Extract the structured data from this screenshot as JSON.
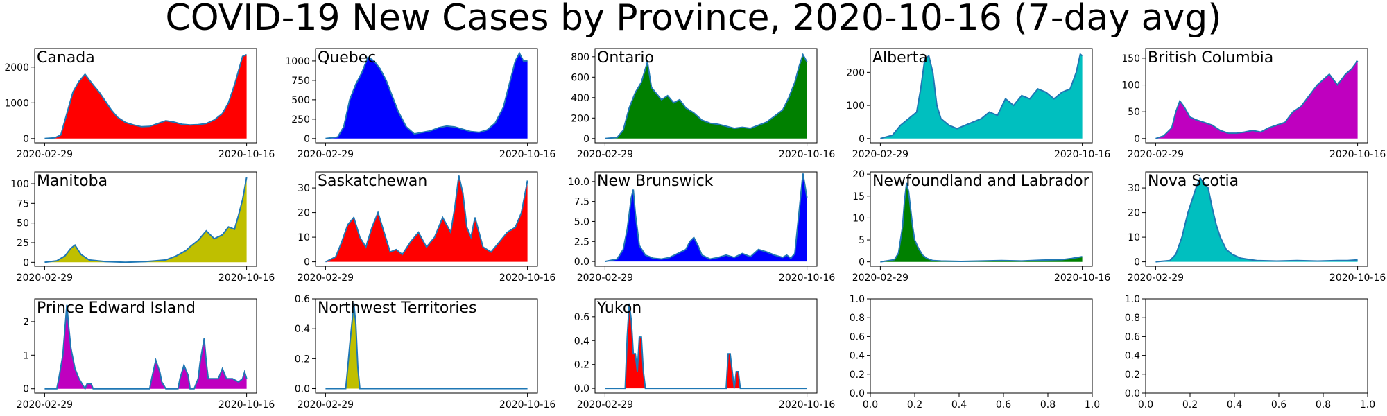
{
  "figure": {
    "title": "COVID-19 New Cases by Province, 2020-10-16 (7-day avg)"
  },
  "chart_data": [
    {
      "type": "area",
      "title": "Canada",
      "color": "#ff0000",
      "line_color": "#1f77b4",
      "x_start": "2020-02-29",
      "x_end": "2020-10-16",
      "x_ticks": [
        "2020-02-29",
        "2020-10-16"
      ],
      "ylim": [
        -120,
        2520
      ],
      "y_ticks": [
        0,
        1000,
        2000
      ],
      "y_tick_labels": [
        "0",
        "1000",
        "2000"
      ],
      "x_frac": [
        0,
        0.05,
        0.08,
        0.11,
        0.14,
        0.17,
        0.2,
        0.22,
        0.24,
        0.27,
        0.3,
        0.33,
        0.36,
        0.4,
        0.44,
        0.48,
        0.52,
        0.56,
        0.6,
        0.64,
        0.68,
        0.72,
        0.76,
        0.8,
        0.84,
        0.88,
        0.91,
        0.94,
        0.96,
        0.98,
        1.0
      ],
      "values": [
        0,
        20,
        100,
        700,
        1300,
        1600,
        1800,
        1650,
        1500,
        1300,
        1050,
        800,
        600,
        450,
        380,
        330,
        340,
        420,
        500,
        460,
        400,
        380,
        390,
        420,
        520,
        700,
        1000,
        1500,
        1900,
        2300,
        2350
      ]
    },
    {
      "type": "area",
      "title": "Quebec",
      "color": "#0000ff",
      "line_color": "#1f77b4",
      "x_start": "2020-02-29",
      "x_end": "2020-10-16",
      "x_ticks": [
        "2020-02-29",
        "2020-10-16"
      ],
      "ylim": [
        -55,
        1160
      ],
      "y_ticks": [
        0,
        250,
        500,
        750,
        1000
      ],
      "y_tick_labels": [
        "0",
        "250",
        "500",
        "750",
        "1000"
      ],
      "x_frac": [
        0,
        0.06,
        0.09,
        0.12,
        0.15,
        0.18,
        0.21,
        0.24,
        0.27,
        0.3,
        0.33,
        0.36,
        0.4,
        0.44,
        0.48,
        0.52,
        0.56,
        0.6,
        0.64,
        0.68,
        0.72,
        0.76,
        0.8,
        0.84,
        0.88,
        0.91,
        0.94,
        0.96,
        0.98,
        1.0
      ],
      "values": [
        0,
        20,
        150,
        500,
        700,
        850,
        1050,
        1000,
        900,
        750,
        550,
        350,
        150,
        60,
        80,
        100,
        140,
        160,
        150,
        120,
        90,
        80,
        110,
        200,
        400,
        700,
        1000,
        1100,
        1000,
        1000
      ]
    },
    {
      "type": "area",
      "title": "Ontario",
      "color": "#008000",
      "line_color": "#1f77b4",
      "x_start": "2020-02-29",
      "x_end": "2020-10-16",
      "x_ticks": [
        "2020-02-29",
        "2020-10-16"
      ],
      "ylim": [
        -42,
        880
      ],
      "y_ticks": [
        0,
        200,
        400,
        600,
        800
      ],
      "y_tick_labels": [
        "0",
        "200",
        "400",
        "600",
        "800"
      ],
      "x_frac": [
        0,
        0.06,
        0.09,
        0.12,
        0.15,
        0.18,
        0.21,
        0.23,
        0.25,
        0.28,
        0.31,
        0.34,
        0.37,
        0.4,
        0.44,
        0.48,
        0.52,
        0.56,
        0.6,
        0.64,
        0.68,
        0.72,
        0.76,
        0.8,
        0.84,
        0.88,
        0.91,
        0.94,
        0.96,
        0.98,
        1.0
      ],
      "values": [
        0,
        10,
        80,
        300,
        450,
        550,
        750,
        500,
        450,
        380,
        420,
        350,
        380,
        300,
        250,
        180,
        150,
        140,
        120,
        100,
        110,
        100,
        130,
        160,
        220,
        280,
        400,
        550,
        700,
        820,
        750
      ]
    },
    {
      "type": "area",
      "title": "Alberta",
      "color": "#00bfbf",
      "line_color": "#1f77b4",
      "x_start": "2020-02-29",
      "x_end": "2020-10-16",
      "x_ticks": [
        "2020-02-29",
        "2020-10-16"
      ],
      "ylim": [
        -13,
        272
      ],
      "y_ticks": [
        0,
        100,
        200
      ],
      "y_tick_labels": [
        "0",
        "100",
        "200"
      ],
      "x_frac": [
        0,
        0.06,
        0.1,
        0.14,
        0.18,
        0.2,
        0.22,
        0.24,
        0.26,
        0.28,
        0.3,
        0.34,
        0.38,
        0.42,
        0.46,
        0.5,
        0.54,
        0.58,
        0.62,
        0.66,
        0.7,
        0.74,
        0.78,
        0.82,
        0.86,
        0.9,
        0.94,
        0.97,
        0.99,
        1.0
      ],
      "values": [
        0,
        10,
        40,
        60,
        80,
        150,
        240,
        250,
        200,
        100,
        60,
        40,
        30,
        40,
        50,
        60,
        80,
        70,
        120,
        100,
        130,
        120,
        150,
        140,
        120,
        140,
        150,
        200,
        255,
        250
      ]
    },
    {
      "type": "area",
      "title": "British Columbia",
      "color": "#bf00bf",
      "line_color": "#1f77b4",
      "x_start": "2020-02-29",
      "x_end": "2020-10-16",
      "x_ticks": [
        "2020-02-29",
        "2020-10-16"
      ],
      "ylim": [
        -8,
        168
      ],
      "y_ticks": [
        0,
        50,
        100,
        150
      ],
      "y_tick_labels": [
        "0",
        "50",
        "100",
        "150"
      ],
      "x_frac": [
        0,
        0.04,
        0.08,
        0.1,
        0.12,
        0.14,
        0.17,
        0.2,
        0.24,
        0.28,
        0.32,
        0.36,
        0.4,
        0.44,
        0.48,
        0.52,
        0.56,
        0.6,
        0.64,
        0.68,
        0.72,
        0.74,
        0.76,
        0.78,
        0.8,
        0.83,
        0.86,
        0.9,
        0.94,
        0.97,
        1.0
      ],
      "values": [
        0,
        5,
        20,
        50,
        70,
        60,
        40,
        35,
        30,
        25,
        15,
        10,
        10,
        12,
        15,
        12,
        20,
        25,
        30,
        50,
        60,
        70,
        80,
        90,
        100,
        110,
        120,
        100,
        120,
        130,
        145
      ]
    },
    {
      "type": "area",
      "title": "Manitoba",
      "color": "#bfbf00",
      "line_color": "#1f77b4",
      "x_start": "2020-02-29",
      "x_end": "2020-10-16",
      "x_ticks": [
        "2020-02-29",
        "2020-10-16"
      ],
      "ylim": [
        -5,
        115
      ],
      "y_ticks": [
        0,
        25,
        50,
        75,
        100
      ],
      "y_tick_labels": [
        "0",
        "25",
        "50",
        "75",
        "100"
      ],
      "x_frac": [
        0,
        0.06,
        0.1,
        0.13,
        0.15,
        0.18,
        0.22,
        0.3,
        0.4,
        0.5,
        0.55,
        0.6,
        0.65,
        0.7,
        0.72,
        0.76,
        0.8,
        0.84,
        0.88,
        0.91,
        0.94,
        0.96,
        0.98,
        1.0
      ],
      "values": [
        0,
        2,
        8,
        18,
        22,
        10,
        3,
        1,
        0,
        1,
        2,
        3,
        8,
        15,
        20,
        28,
        40,
        30,
        35,
        45,
        42,
        60,
        80,
        108
      ]
    },
    {
      "type": "area",
      "title": "Saskatchewan",
      "color": "#ff0000",
      "line_color": "#1f77b4",
      "x_start": "2020-02-29",
      "x_end": "2020-10-16",
      "x_ticks": [
        "2020-02-29",
        "2020-10-16"
      ],
      "ylim": [
        -1.8,
        36.5
      ],
      "y_ticks": [
        0,
        10,
        20,
        30
      ],
      "y_tick_labels": [
        "0",
        "10",
        "20",
        "30"
      ],
      "x_frac": [
        0,
        0.05,
        0.08,
        0.11,
        0.14,
        0.17,
        0.2,
        0.23,
        0.26,
        0.29,
        0.32,
        0.35,
        0.38,
        0.42,
        0.46,
        0.5,
        0.54,
        0.58,
        0.62,
        0.64,
        0.66,
        0.68,
        0.7,
        0.72,
        0.74,
        0.76,
        0.78,
        0.82,
        0.86,
        0.9,
        0.94,
        0.97,
        1.0
      ],
      "values": [
        0,
        2,
        8,
        15,
        18,
        10,
        6,
        14,
        20,
        12,
        4,
        5,
        3,
        8,
        12,
        6,
        10,
        18,
        12,
        22,
        35,
        28,
        14,
        10,
        18,
        12,
        6,
        4,
        8,
        12,
        14,
        20,
        33
      ]
    },
    {
      "type": "area",
      "title": "New Brunswick",
      "color": "#0000ff",
      "line_color": "#1f77b4",
      "x_start": "2020-02-29",
      "x_end": "2020-10-16",
      "x_ticks": [
        "2020-02-29",
        "2020-10-16"
      ],
      "ylim": [
        -0.6,
        11.2
      ],
      "y_ticks": [
        0,
        2.5,
        5,
        7.5,
        10
      ],
      "y_tick_labels": [
        "0.0",
        "2.5",
        "5.0",
        "7.5",
        "10.0"
      ],
      "x_frac": [
        0,
        0.06,
        0.09,
        0.11,
        0.13,
        0.14,
        0.15,
        0.17,
        0.2,
        0.24,
        0.28,
        0.32,
        0.36,
        0.4,
        0.42,
        0.44,
        0.46,
        0.48,
        0.52,
        0.56,
        0.6,
        0.64,
        0.68,
        0.72,
        0.76,
        0.8,
        0.84,
        0.88,
        0.9,
        0.92,
        0.94,
        0.96,
        0.98,
        1.0
      ],
      "values": [
        0,
        0.3,
        1.5,
        4,
        8,
        9,
        6,
        2,
        0.8,
        0.4,
        0.3,
        0.5,
        1,
        1.5,
        2.5,
        3,
        2,
        0.8,
        0.3,
        0.5,
        0.8,
        0.5,
        1,
        0.6,
        1.5,
        1.2,
        0.8,
        0.5,
        0.8,
        0.4,
        1,
        6,
        11,
        8
      ]
    },
    {
      "type": "area",
      "title": "Newfoundland and Labrador",
      "color": "#008000",
      "line_color": "#1f77b4",
      "x_start": "2020-02-29",
      "x_end": "2020-10-16",
      "x_ticks": [
        "2020-02-29",
        "2020-10-16"
      ],
      "ylim": [
        -1,
        20.5
      ],
      "y_ticks": [
        0,
        5,
        10,
        15,
        20
      ],
      "y_tick_labels": [
        "0",
        "5",
        "10",
        "15",
        "20"
      ],
      "x_frac": [
        0,
        0.07,
        0.09,
        0.11,
        0.12,
        0.13,
        0.14,
        0.15,
        0.16,
        0.17,
        0.19,
        0.21,
        0.23,
        0.26,
        0.3,
        0.4,
        0.5,
        0.6,
        0.7,
        0.8,
        0.9,
        0.95,
        1.0
      ],
      "values": [
        0,
        0.5,
        2,
        8,
        14,
        18,
        16,
        12,
        8,
        5,
        3,
        1.5,
        0.8,
        0.3,
        0.2,
        0.1,
        0.2,
        0.3,
        0.2,
        0.4,
        0.5,
        0.8,
        1.2
      ]
    },
    {
      "type": "area",
      "title": "Nova Scotia",
      "color": "#00bfbf",
      "line_color": "#1f77b4",
      "x_start": "2020-02-29",
      "x_end": "2020-10-16",
      "x_ticks": [
        "2020-02-29",
        "2020-10-16"
      ],
      "ylim": [
        -1.8,
        36.5
      ],
      "y_ticks": [
        0,
        10,
        20,
        30
      ],
      "y_tick_labels": [
        "0",
        "10",
        "20",
        "30"
      ],
      "x_frac": [
        0,
        0.07,
        0.1,
        0.13,
        0.16,
        0.18,
        0.2,
        0.22,
        0.24,
        0.26,
        0.28,
        0.3,
        0.32,
        0.35,
        0.38,
        0.42,
        0.46,
        0.5,
        0.6,
        0.7,
        0.8,
        0.9,
        0.95,
        1.0
      ],
      "values": [
        0,
        0.5,
        3,
        10,
        20,
        25,
        30,
        34,
        32,
        30,
        22,
        15,
        10,
        5,
        3,
        1.5,
        1,
        0.5,
        0.3,
        0.5,
        0.3,
        0.5,
        0.5,
        0.8
      ]
    },
    {
      "type": "area",
      "title": "Prince Edward Island",
      "color": "#bf00bf",
      "line_color": "#1f77b4",
      "x_start": "2020-02-29",
      "x_end": "2020-10-16",
      "x_ticks": [
        "2020-02-29",
        "2020-10-16"
      ],
      "ylim": [
        -0.13,
        2.68
      ],
      "y_ticks": [
        0,
        1,
        2
      ],
      "y_tick_labels": [
        "0",
        "1",
        "2"
      ],
      "x_frac": [
        0,
        0.06,
        0.07,
        0.09,
        0.11,
        0.12,
        0.13,
        0.15,
        0.17,
        0.19,
        0.2,
        0.21,
        0.23,
        0.24,
        0.25,
        0.3,
        0.52,
        0.53,
        0.55,
        0.57,
        0.58,
        0.6,
        0.66,
        0.67,
        0.69,
        0.71,
        0.72,
        0.74,
        0.76,
        0.77,
        0.79,
        0.8,
        0.81,
        0.83,
        0.86,
        0.88,
        0.9,
        0.93,
        0.96,
        0.98,
        0.99,
        1.0
      ],
      "values": [
        0,
        0,
        0.3,
        1,
        2.5,
        1.8,
        1.2,
        0.6,
        0.3,
        0.1,
        0,
        0.15,
        0.15,
        0,
        0,
        0,
        0,
        0.3,
        0.85,
        0.5,
        0.2,
        0,
        0,
        0.3,
        0.7,
        0.4,
        0,
        0,
        0.3,
        0.8,
        1.5,
        0.8,
        0.3,
        0.3,
        0.3,
        0.6,
        0.3,
        0.3,
        0.2,
        0.3,
        0.5,
        0.3
      ]
    },
    {
      "type": "area",
      "title": "Northwest Territories",
      "color": "#bfbf00",
      "line_color": "#1f77b4",
      "x_start": "2020-02-29",
      "x_end": "2020-10-16",
      "x_ticks": [
        "2020-02-29",
        "2020-10-16"
      ],
      "ylim": [
        -0.03,
        0.6
      ],
      "y_ticks": [
        0,
        0.2,
        0.4,
        0.6
      ],
      "y_tick_labels": [
        "0.0",
        "0.2",
        "0.4",
        "0.6"
      ],
      "x_frac": [
        0,
        0.1,
        0.11,
        0.12,
        0.13,
        0.14,
        0.15,
        0.16,
        0.17,
        0.18,
        1.0
      ],
      "values": [
        0,
        0,
        0.14,
        0.29,
        0.43,
        0.57,
        0.43,
        0.14,
        0,
        0,
        0
      ]
    },
    {
      "type": "area",
      "title": "Yukon",
      "color": "#ff0000",
      "line_color": "#1f77b4",
      "x_start": "2020-02-29",
      "x_end": "2020-10-16",
      "x_ticks": [
        "2020-02-29",
        "2020-10-16"
      ],
      "ylim": [
        -0.04,
        0.75
      ],
      "y_ticks": [
        0,
        0.2,
        0.4,
        0.6
      ],
      "y_tick_labels": [
        "0.0",
        "0.2",
        "0.4",
        "0.6"
      ],
      "x_frac": [
        0,
        0.1,
        0.11,
        0.12,
        0.13,
        0.14,
        0.15,
        0.16,
        0.17,
        0.18,
        0.19,
        0.2,
        0.21,
        0.22,
        0.23,
        0.24,
        0.6,
        0.61,
        0.62,
        0.63,
        0.64,
        0.65,
        0.66,
        0.67,
        0.68,
        1.0
      ],
      "values": [
        0,
        0,
        0.43,
        0.71,
        0.57,
        0.29,
        0.29,
        0.14,
        0.43,
        0.43,
        0.14,
        0,
        0,
        0,
        0,
        0,
        0,
        0.29,
        0.29,
        0.14,
        0,
        0.14,
        0.14,
        0,
        0,
        0
      ]
    },
    {
      "type": "empty",
      "title": "",
      "xlim": [
        0,
        1
      ],
      "ylim": [
        0,
        1
      ],
      "x_ticks": [
        "0.0",
        "0.2",
        "0.4",
        "0.6",
        "0.8",
        "1.0"
      ],
      "y_ticks": [
        "0.0",
        "0.2",
        "0.4",
        "0.6",
        "0.8",
        "1.0"
      ]
    },
    {
      "type": "empty",
      "title": "",
      "xlim": [
        0,
        1
      ],
      "ylim": [
        0,
        1
      ],
      "x_ticks": [
        "0.0",
        "0.2",
        "0.4",
        "0.6",
        "0.8",
        "1.0"
      ],
      "y_ticks": [
        "0.0",
        "0.2",
        "0.4",
        "0.6",
        "0.8",
        "1.0"
      ]
    }
  ]
}
